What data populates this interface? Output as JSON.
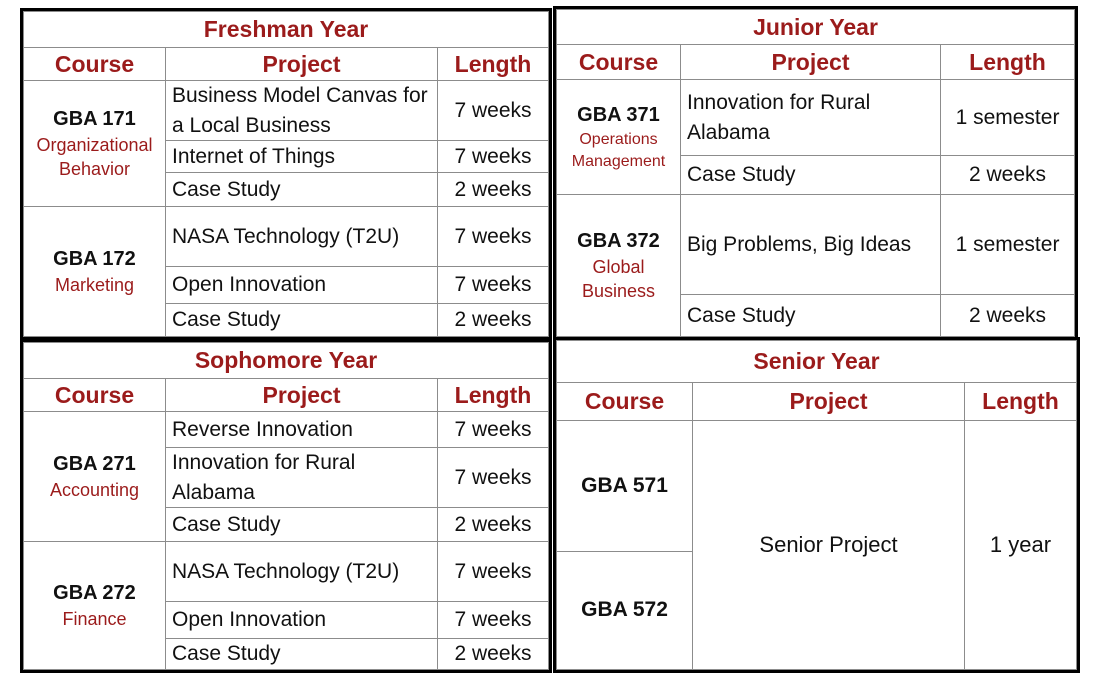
{
  "col_headers": {
    "course": "Course",
    "project": "Project",
    "length": "Length"
  },
  "freshman": {
    "title": "Freshman Year",
    "courses": [
      {
        "code": "GBA 171",
        "name_line1": "Organizational",
        "name_line2": "Behavior",
        "projects": [
          {
            "project": "Business Model Canvas for a Local Business",
            "length": "7 weeks"
          },
          {
            "project": "Internet of Things",
            "length": "7 weeks"
          },
          {
            "project": "Case Study",
            "length": "2 weeks"
          }
        ]
      },
      {
        "code": "GBA 172",
        "name_line1": "Marketing",
        "name_line2": "",
        "projects": [
          {
            "project": "NASA Technology (T2U)",
            "length": "7 weeks"
          },
          {
            "project": "Open Innovation",
            "length": "7 weeks"
          },
          {
            "project": "Case Study",
            "length": "2 weeks"
          }
        ]
      }
    ]
  },
  "sophomore": {
    "title": "Sophomore Year",
    "courses": [
      {
        "code": "GBA 271",
        "name_line1": "Accounting",
        "name_line2": "",
        "projects": [
          {
            "project": "Reverse Innovation",
            "length": "7 weeks"
          },
          {
            "project": "Innovation for Rural Alabama",
            "length": "7 weeks"
          },
          {
            "project": "Case Study",
            "length": "2 weeks"
          }
        ]
      },
      {
        "code": "GBA 272",
        "name_line1": "Finance",
        "name_line2": "",
        "projects": [
          {
            "project": "NASA Technology (T2U)",
            "length": "7 weeks"
          },
          {
            "project": "Open Innovation",
            "length": "7 weeks"
          },
          {
            "project": "Case Study",
            "length": "2 weeks"
          }
        ]
      }
    ]
  },
  "junior": {
    "title": "Junior Year",
    "courses": [
      {
        "code": "GBA 371",
        "name_line1": "Operations",
        "name_line2": "Management",
        "projects": [
          {
            "project": "Innovation for Rural Alabama",
            "length": "1 semester"
          },
          {
            "project": "Case Study",
            "length": "2 weeks"
          }
        ]
      },
      {
        "code": "GBA 372",
        "name_line1": "Global",
        "name_line2": "Business",
        "projects": [
          {
            "project": "Big Problems, Big Ideas",
            "length": "1 semester"
          },
          {
            "project": "Case Study",
            "length": "2 weeks"
          }
        ]
      }
    ]
  },
  "senior": {
    "title": "Senior Year",
    "course_1": "GBA 571",
    "course_2": "GBA 572",
    "project": "Senior Project",
    "length": "1 year"
  }
}
